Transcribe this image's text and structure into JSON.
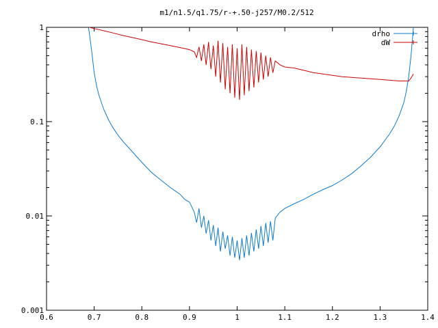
{
  "chart_data": {
    "type": "line",
    "title": "m1/n1.5/q1.75/r-+.50-j257/M0.2/512",
    "xlabel": "",
    "ylabel": "",
    "xlim": [
      0.6,
      1.4
    ],
    "ylim": [
      0.001,
      1
    ],
    "yscale": "log",
    "grid": false,
    "legend": "top-right",
    "x_ticks": [
      {
        "v": 0.6,
        "label": "0.6"
      },
      {
        "v": 0.7,
        "label": "0.7"
      },
      {
        "v": 0.8,
        "label": "0.8"
      },
      {
        "v": 0.9,
        "label": "0.9"
      },
      {
        "v": 1.0,
        "label": "1"
      },
      {
        "v": 1.1,
        "label": "1.1"
      },
      {
        "v": 1.2,
        "label": "1.2"
      },
      {
        "v": 1.3,
        "label": "1.3"
      },
      {
        "v": 1.4,
        "label": "1.4"
      }
    ],
    "y_ticks": [
      {
        "v": 1,
        "label": "1"
      },
      {
        "v": 0.1,
        "label": "0.1"
      },
      {
        "v": 0.01,
        "label": "0.01"
      },
      {
        "v": 0.001,
        "label": "0.001"
      }
    ],
    "series": [
      {
        "name": "drho",
        "color": "#0a7ad0",
        "x": [
          0.688,
          0.69,
          0.695,
          0.7,
          0.705,
          0.71,
          0.72,
          0.73,
          0.74,
          0.75,
          0.76,
          0.78,
          0.8,
          0.82,
          0.84,
          0.86,
          0.88,
          0.89,
          0.9,
          0.91,
          0.915,
          0.92,
          0.925,
          0.93,
          0.935,
          0.94,
          0.945,
          0.95,
          0.955,
          0.96,
          0.965,
          0.97,
          0.975,
          0.98,
          0.985,
          0.99,
          0.995,
          1.0,
          1.005,
          1.01,
          1.015,
          1.02,
          1.025,
          1.03,
          1.035,
          1.04,
          1.045,
          1.05,
          1.055,
          1.06,
          1.065,
          1.07,
          1.075,
          1.08,
          1.09,
          1.1,
          1.12,
          1.14,
          1.16,
          1.18,
          1.2,
          1.22,
          1.24,
          1.26,
          1.28,
          1.3,
          1.32,
          1.33,
          1.34,
          1.35,
          1.355,
          1.36,
          1.365,
          1.37
        ],
        "y": [
          1.0,
          0.85,
          0.55,
          0.33,
          0.24,
          0.19,
          0.135,
          0.105,
          0.085,
          0.072,
          0.062,
          0.048,
          0.037,
          0.029,
          0.024,
          0.02,
          0.017,
          0.015,
          0.014,
          0.011,
          0.0085,
          0.012,
          0.0075,
          0.01,
          0.0065,
          0.009,
          0.0055,
          0.008,
          0.0048,
          0.0075,
          0.0042,
          0.0068,
          0.0045,
          0.0062,
          0.0038,
          0.006,
          0.0036,
          0.0055,
          0.0034,
          0.0058,
          0.0036,
          0.0062,
          0.0038,
          0.0066,
          0.0042,
          0.0072,
          0.0045,
          0.0078,
          0.0048,
          0.0084,
          0.0052,
          0.0088,
          0.0055,
          0.0095,
          0.011,
          0.012,
          0.0135,
          0.015,
          0.017,
          0.019,
          0.021,
          0.024,
          0.028,
          0.034,
          0.042,
          0.054,
          0.074,
          0.09,
          0.115,
          0.16,
          0.21,
          0.3,
          0.5,
          1.0
        ]
      },
      {
        "name": "dW",
        "color": "#cc0000",
        "x": [
          0.69,
          0.7,
          0.72,
          0.74,
          0.76,
          0.78,
          0.8,
          0.82,
          0.84,
          0.86,
          0.88,
          0.9,
          0.91,
          0.915,
          0.92,
          0.925,
          0.93,
          0.935,
          0.94,
          0.945,
          0.95,
          0.955,
          0.96,
          0.965,
          0.97,
          0.975,
          0.98,
          0.985,
          0.99,
          0.995,
          1.0,
          1.005,
          1.01,
          1.015,
          1.02,
          1.025,
          1.03,
          1.035,
          1.04,
          1.045,
          1.05,
          1.055,
          1.06,
          1.065,
          1.07,
          1.075,
          1.08,
          1.09,
          1.1,
          1.12,
          1.14,
          1.16,
          1.18,
          1.2,
          1.22,
          1.24,
          1.26,
          1.28,
          1.3,
          1.32,
          1.34,
          1.36,
          1.365,
          1.37
        ],
        "y": [
          1.0,
          0.97,
          0.92,
          0.87,
          0.82,
          0.78,
          0.74,
          0.7,
          0.67,
          0.64,
          0.61,
          0.58,
          0.55,
          0.48,
          0.62,
          0.44,
          0.66,
          0.4,
          0.7,
          0.36,
          0.64,
          0.3,
          0.72,
          0.26,
          0.68,
          0.22,
          0.62,
          0.2,
          0.66,
          0.18,
          0.6,
          0.17,
          0.66,
          0.19,
          0.62,
          0.21,
          0.58,
          0.23,
          0.56,
          0.26,
          0.54,
          0.28,
          0.5,
          0.3,
          0.48,
          0.33,
          0.44,
          0.4,
          0.38,
          0.37,
          0.35,
          0.33,
          0.32,
          0.31,
          0.3,
          0.295,
          0.29,
          0.285,
          0.28,
          0.275,
          0.27,
          0.27,
          0.29,
          0.32
        ]
      }
    ]
  }
}
